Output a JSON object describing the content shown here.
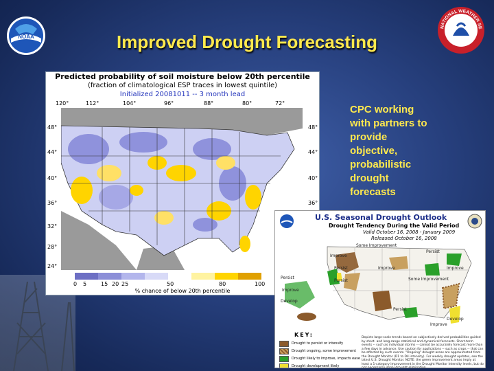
{
  "slide": {
    "title": "Improved Drought Forecasting",
    "bullet": "CPC working\nwith partners to\nprovide\nobjective,\nprobabilistic\ndrought\nforecasts",
    "colors": {
      "background": "#27407e",
      "title": "#ffe94d"
    }
  },
  "logos": {
    "noaa": {
      "icon": "noaa-logo-icon",
      "text": "NOAA"
    },
    "nws": {
      "icon": "nws-logo-icon",
      "text": "NATIONAL WEATHER SERVICE"
    }
  },
  "probability_map": {
    "title": "Predicted probability of soil moisture below 20th percentile",
    "subtitle": "(fraction of climatological ESP traces in lowest quintile)",
    "init": "Initialized 20081011 -- 3 month lead",
    "longitudes": [
      "120°",
      "112°",
      "104°",
      "96°",
      "88°",
      "80°",
      "72°"
    ],
    "latitudes_left": [
      "48°",
      "44°",
      "40°",
      "36°",
      "32°",
      "28°",
      "24°"
    ],
    "latitudes_right": [
      "48°",
      "44°",
      "40°",
      "36°"
    ],
    "colorbar_ticks": [
      "0",
      "5",
      "15",
      "20",
      "25",
      "50",
      "80",
      "100"
    ],
    "colorbar_label": "% chance of below 20th percentile",
    "colorbar_colors": [
      "#6d6fc4",
      "#8c8fd8",
      "#b3b6ec",
      "#d8daf7",
      "#ffffff",
      "#fff3a0",
      "#ffd400",
      "#e0a000"
    ]
  },
  "drought_outlook": {
    "title": "U.S. Seasonal Drought Outlook",
    "subtitle": "Drought Tendency During the Valid Period",
    "valid": "Valid October 16, 2008 - January 2009",
    "released": "Released October 16, 2008",
    "map_labels": [
      "Some Improvement",
      "Improve",
      "Persist",
      "Persist",
      "Improve",
      "Some Improvement",
      "Improve",
      "Persist",
      "Develop",
      "Persist",
      "Improve",
      "Persist",
      "Develop",
      "Improve"
    ],
    "key_title": "KEY:",
    "key": [
      {
        "label": "Drought to persist or intensify",
        "color": "#8b5a2b"
      },
      {
        "label": "Drought ongoing, some improvement",
        "color": "#c8a060"
      },
      {
        "label": "Drought likely to improve, impacts ease",
        "color": "#2aa02a"
      },
      {
        "label": "Drought development likely",
        "color": "#f0e030"
      }
    ],
    "fine_print": "Depicts large-scale trends based on subjectively derived probabilities guided by short- and long-range statistical and dynamical forecasts. Short-term events -- such as individual storms -- cannot be accurately forecast more than a few days in advance. Use caution for applications -- such as crops -- that can be affected by such events. \"Ongoing\" drought areas are approximated from the Drought Monitor (D1 to D4 intensity). For weekly drought updates, see the latest U.S. Drought Monitor. NOTE: the green improvement areas imply at least a 1-category improvement in the Drought Monitor intensity levels, but do not necessarily imply drought elimination."
  }
}
